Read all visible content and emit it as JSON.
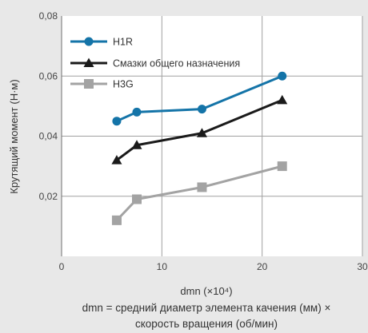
{
  "chart_data": {
    "type": "line",
    "xlabel": "dmn (×10⁴)",
    "ylabel": "Крутящий момент (Н·м)",
    "xlim": [
      0,
      30
    ],
    "ylim": [
      0,
      0.08
    ],
    "xticks": [
      0,
      10,
      20,
      30
    ],
    "yticks": [
      0.02,
      0.04,
      0.06,
      0.08
    ],
    "xtick_labels": [
      "0",
      "10",
      "20",
      "30"
    ],
    "ytick_labels": [
      "0,02",
      "0,04",
      "0,06",
      "0,08"
    ],
    "grid": true,
    "legend_position": "top-left",
    "caption_lines": [
      "dmn = средний диаметр элемента качения (мм) ×",
      "скорость вращения (об/мин)"
    ],
    "series": [
      {
        "name": "H1R",
        "color": "#1474a8",
        "marker": "circle",
        "x": [
          5.5,
          7.5,
          14,
          22
        ],
        "y": [
          0.045,
          0.048,
          0.049,
          0.06
        ]
      },
      {
        "name": "Смазки общего назначения",
        "color": "#1a1a1a",
        "marker": "triangle",
        "x": [
          5.5,
          7.5,
          14,
          22
        ],
        "y": [
          0.032,
          0.037,
          0.041,
          0.052
        ]
      },
      {
        "name": "H3G",
        "color": "#a3a3a3",
        "marker": "square",
        "x": [
          5.5,
          7.5,
          14,
          22
        ],
        "y": [
          0.012,
          0.019,
          0.023,
          0.03
        ]
      }
    ]
  }
}
